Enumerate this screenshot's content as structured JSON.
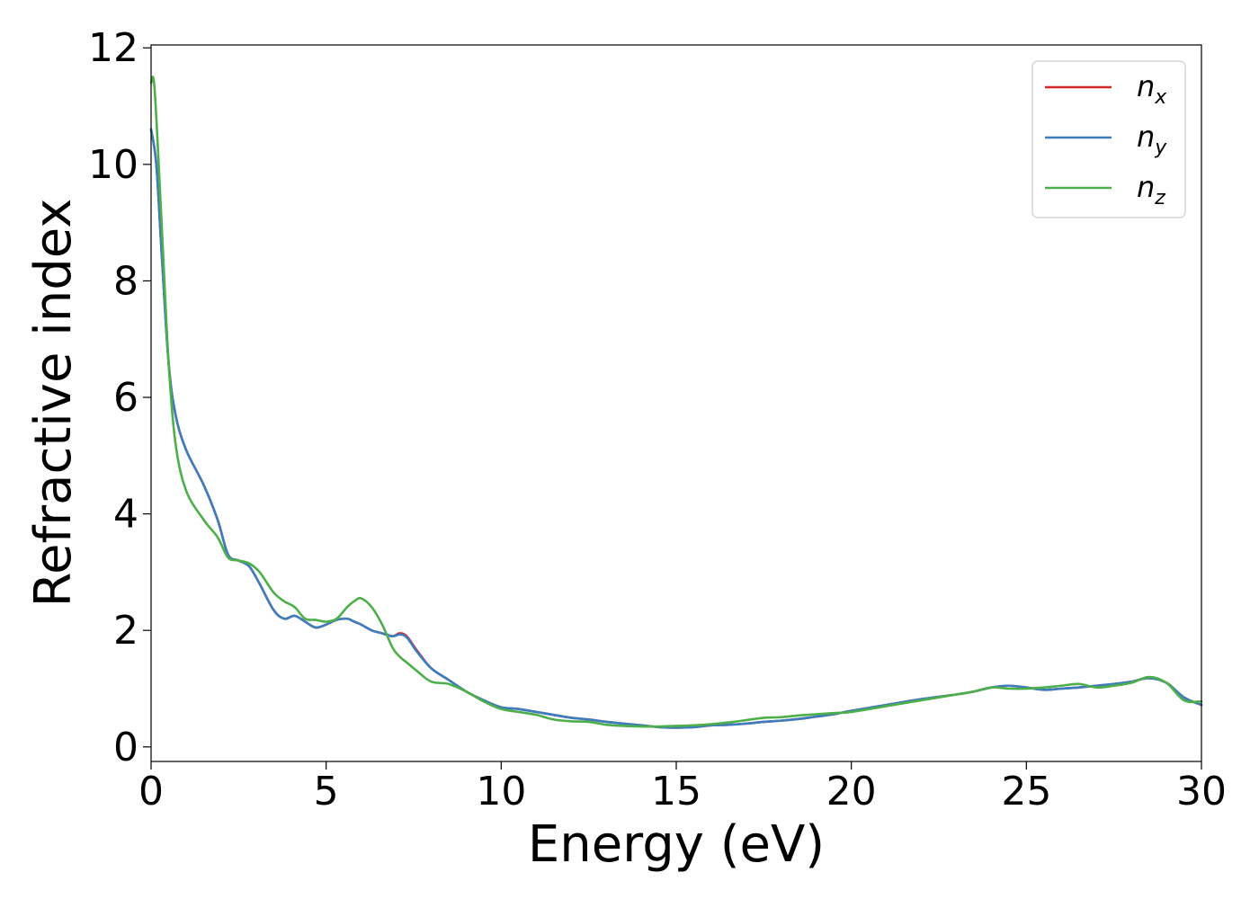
{
  "chart_data": {
    "type": "line",
    "xlabel": "Energy (eV)",
    "ylabel": "Refractive index",
    "xlim": [
      0,
      30
    ],
    "ylim": [
      -0.25,
      12.05
    ],
    "xticks": [
      0,
      5,
      10,
      15,
      20,
      25,
      30
    ],
    "yticks": [
      0,
      2,
      4,
      6,
      8,
      10,
      12
    ],
    "grid": false,
    "legend_position": "top-right",
    "series": [
      {
        "name": "n",
        "sub": "x",
        "color": "#d62728",
        "x": [
          0,
          0.15,
          0.3,
          0.5,
          0.7,
          1.0,
          1.5,
          1.9,
          2.2,
          2.5,
          2.8,
          3.1,
          3.5,
          3.8,
          4.1,
          4.4,
          4.7,
          5.0,
          5.3,
          5.6,
          5.8,
          6.0,
          6.3,
          6.6,
          6.9,
          7.1,
          7.3,
          7.6,
          8.0,
          8.5,
          9.0,
          9.5,
          10.0,
          10.5,
          11.0,
          11.5,
          12.0,
          12.5,
          13.0,
          13.5,
          14.0,
          14.5,
          15.0,
          15.5,
          16.0,
          16.5,
          17.0,
          17.5,
          18.0,
          18.5,
          19.0,
          19.5,
          20.0,
          21.0,
          22.0,
          23.0,
          23.5,
          24.0,
          24.5,
          25.0,
          25.5,
          26.0,
          26.5,
          27.0,
          27.5,
          28.0,
          28.5,
          29.0,
          29.5,
          30.0
        ],
        "y": [
          10.6,
          10.0,
          8.5,
          6.6,
          5.7,
          5.1,
          4.5,
          3.9,
          3.3,
          3.2,
          3.1,
          2.8,
          2.35,
          2.2,
          2.25,
          2.15,
          2.05,
          2.1,
          2.18,
          2.2,
          2.15,
          2.1,
          2.0,
          1.95,
          1.9,
          1.95,
          1.9,
          1.65,
          1.35,
          1.15,
          0.95,
          0.8,
          0.68,
          0.65,
          0.6,
          0.55,
          0.5,
          0.47,
          0.43,
          0.4,
          0.37,
          0.34,
          0.33,
          0.34,
          0.37,
          0.38,
          0.4,
          0.43,
          0.45,
          0.48,
          0.52,
          0.56,
          0.62,
          0.72,
          0.82,
          0.9,
          0.95,
          1.02,
          1.05,
          1.02,
          0.98,
          1.0,
          1.02,
          1.05,
          1.08,
          1.12,
          1.18,
          1.1,
          0.85,
          0.72
        ]
      },
      {
        "name": "n",
        "sub": "y",
        "color": "#3a7ebf",
        "x": [
          0,
          0.15,
          0.3,
          0.5,
          0.7,
          1.0,
          1.5,
          1.9,
          2.2,
          2.5,
          2.8,
          3.1,
          3.5,
          3.8,
          4.1,
          4.4,
          4.7,
          5.0,
          5.3,
          5.6,
          5.8,
          6.0,
          6.3,
          6.6,
          6.9,
          7.1,
          7.3,
          7.6,
          8.0,
          8.5,
          9.0,
          9.5,
          10.0,
          10.5,
          11.0,
          11.5,
          12.0,
          12.5,
          13.0,
          13.5,
          14.0,
          14.5,
          15.0,
          15.5,
          16.0,
          16.5,
          17.0,
          17.5,
          18.0,
          18.5,
          19.0,
          19.5,
          20.0,
          21.0,
          22.0,
          23.0,
          23.5,
          24.0,
          24.5,
          25.0,
          25.5,
          26.0,
          26.5,
          27.0,
          27.5,
          28.0,
          28.5,
          29.0,
          29.5,
          30.0
        ],
        "y": [
          10.6,
          10.0,
          8.5,
          6.6,
          5.7,
          5.1,
          4.5,
          3.9,
          3.3,
          3.2,
          3.1,
          2.8,
          2.35,
          2.2,
          2.25,
          2.15,
          2.05,
          2.1,
          2.18,
          2.2,
          2.15,
          2.1,
          2.0,
          1.95,
          1.9,
          1.93,
          1.88,
          1.63,
          1.35,
          1.15,
          0.95,
          0.8,
          0.68,
          0.65,
          0.6,
          0.55,
          0.5,
          0.47,
          0.43,
          0.4,
          0.37,
          0.34,
          0.33,
          0.34,
          0.37,
          0.38,
          0.4,
          0.43,
          0.45,
          0.48,
          0.52,
          0.56,
          0.62,
          0.72,
          0.82,
          0.9,
          0.95,
          1.02,
          1.05,
          1.02,
          0.98,
          1.0,
          1.02,
          1.05,
          1.08,
          1.12,
          1.18,
          1.1,
          0.85,
          0.72
        ]
      },
      {
        "name": "n",
        "sub": "z",
        "color": "#4daf4a",
        "x": [
          0,
          0.1,
          0.3,
          0.5,
          0.7,
          1.0,
          1.5,
          1.9,
          2.2,
          2.5,
          2.8,
          3.1,
          3.5,
          3.8,
          4.1,
          4.4,
          4.7,
          5.0,
          5.3,
          5.6,
          5.8,
          6.0,
          6.3,
          6.6,
          6.9,
          7.1,
          7.3,
          7.6,
          8.0,
          8.5,
          9.0,
          9.5,
          10.0,
          10.5,
          11.0,
          11.5,
          12.0,
          12.5,
          13.0,
          13.5,
          14.0,
          14.5,
          15.0,
          15.5,
          16.0,
          16.5,
          17.0,
          17.5,
          18.0,
          18.5,
          19.0,
          19.5,
          20.0,
          21.0,
          22.0,
          23.0,
          23.5,
          24.0,
          24.5,
          25.0,
          25.5,
          26.0,
          26.5,
          27.0,
          27.5,
          28.0,
          28.5,
          29.0,
          29.5,
          30.0
        ],
        "y": [
          11.4,
          11.3,
          9.0,
          6.6,
          5.2,
          4.4,
          3.9,
          3.6,
          3.25,
          3.2,
          3.15,
          3.0,
          2.65,
          2.5,
          2.4,
          2.2,
          2.18,
          2.15,
          2.2,
          2.4,
          2.5,
          2.55,
          2.4,
          2.1,
          1.7,
          1.55,
          1.45,
          1.3,
          1.12,
          1.08,
          0.95,
          0.78,
          0.65,
          0.6,
          0.55,
          0.47,
          0.44,
          0.43,
          0.38,
          0.36,
          0.35,
          0.35,
          0.36,
          0.37,
          0.39,
          0.42,
          0.46,
          0.5,
          0.51,
          0.54,
          0.56,
          0.58,
          0.6,
          0.7,
          0.8,
          0.9,
          0.95,
          1.02,
          1.0,
          1.0,
          1.02,
          1.05,
          1.08,
          1.02,
          1.05,
          1.1,
          1.2,
          1.1,
          0.8,
          0.78
        ]
      }
    ]
  }
}
